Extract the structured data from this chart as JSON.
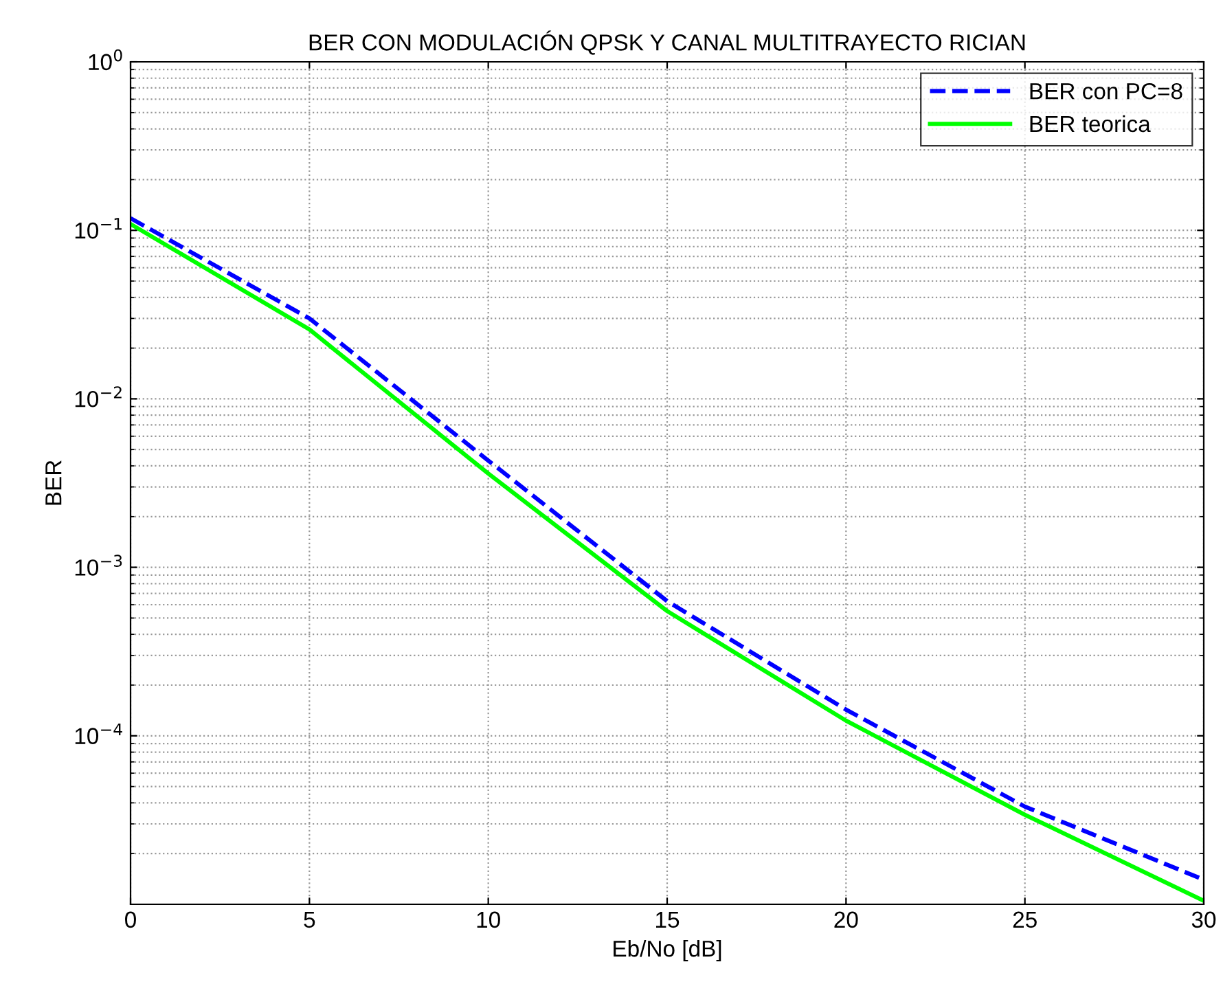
{
  "chart_data": {
    "type": "line",
    "title": "BER CON MODULACIÓN QPSK Y CANAL MULTITRAYECTO RICIAN",
    "xlabel": "Eb/No [dB]",
    "ylabel": "BER",
    "x": [
      0,
      5,
      10,
      15,
      20,
      25,
      30
    ],
    "series": [
      {
        "name": "BER con PC=8",
        "color": "#0000ff",
        "line_style": "dashed",
        "values": [
          0.118,
          0.03,
          0.0043,
          0.00063,
          0.000143,
          3.8e-05,
          1.4e-05
        ]
      },
      {
        "name": "BER teorica",
        "color": "#00ff00",
        "line_style": "solid",
        "values": [
          0.109,
          0.0258,
          0.0036,
          0.00055,
          0.000123,
          3.4e-05,
          1.05e-05
        ]
      }
    ],
    "log": "y",
    "xlim": [
      0,
      30
    ],
    "xticks": [
      0,
      5,
      10,
      15,
      20,
      25,
      30
    ],
    "ylim": [
      1e-05,
      1
    ],
    "yticks": [
      {
        "value": 1,
        "label": "10$^{0}$"
      },
      {
        "value": 0.1,
        "label": "10$^{−1}$"
      },
      {
        "value": 0.01,
        "label": "10$^{−2}$"
      },
      {
        "value": 0.001,
        "label": "10$^{−3}$"
      },
      {
        "value": 0.0001,
        "label": "10$^{−4}$"
      }
    ],
    "grid": true,
    "legend": "top right",
    "marker": "none"
  }
}
